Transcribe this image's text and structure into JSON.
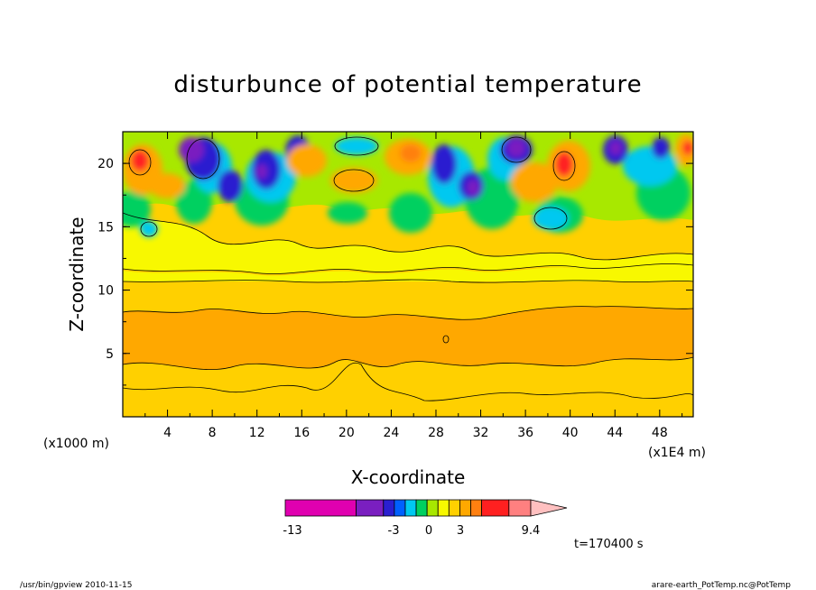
{
  "chart_data": {
    "type": "heatmap",
    "title": "disturbunce of potential temperature",
    "xlabel": "X-coordinate",
    "ylabel": "Z-coordinate",
    "x_unit": "(x1E4 m)",
    "y_unit": "(x1000 m)",
    "x_ticks": [
      "4",
      "8",
      "12",
      "16",
      "20",
      "24",
      "28",
      "32",
      "36",
      "40",
      "44",
      "48"
    ],
    "y_ticks": [
      "5",
      "10",
      "15",
      "20"
    ],
    "xlim": [
      0,
      51
    ],
    "ylim": [
      0,
      22.5
    ],
    "colorbar": {
      "labels": [
        "-13",
        "-3",
        "0",
        "3",
        "9.4"
      ],
      "colors": [
        "#e000b0",
        "#7a1fc0",
        "#2a1fd0",
        "#0060ff",
        "#00c8f0",
        "#00d060",
        "#a8e800",
        "#f8f800",
        "#ffd000",
        "#ffa800",
        "#ff8010",
        "#ff2020",
        "#ff8080",
        "#ffc0c0"
      ]
    },
    "time_label": "t=170400 s"
  },
  "footer": {
    "left": "/usr/bin/gpview   2010-11-15",
    "right": "arare-earth_PotTemp.nc@PotTemp"
  }
}
